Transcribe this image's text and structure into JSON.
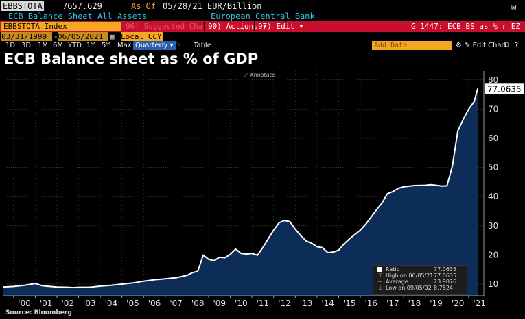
{
  "header": {
    "ticker": "EBBSTOTA",
    "value": "7657.629",
    "asof_label": "As Of",
    "asof_date": "05/28/21",
    "unit": "EUR/Billion",
    "description": "ECB Balance Sheet All Assets",
    "source_name": "European Central Bank"
  },
  "toolbar": {
    "security": "EBBSTOTA Index",
    "suggested": "96) Suggested Charts",
    "actions": "90) Actions",
    "edit": "97) Edit",
    "chart_id": "G 1447: ECB BS as % r EZ GDP"
  },
  "range": {
    "start_date": "03/31/1999",
    "end_date": "06/05/2021",
    "currency": "Local CCY"
  },
  "periods": [
    "1D",
    "3D",
    "1M",
    "6M",
    "YTD",
    "1Y",
    "5Y",
    "Max"
  ],
  "frequency": "Quarterly",
  "table_label": "Table",
  "add_data_placeholder": "Add Data",
  "edit_chart_label": "Edit Chart",
  "annotate_label": "Annotate",
  "source_text": "Source: Bloomberg",
  "legend": {
    "series_label": "Ratio",
    "series_value": "77.0635",
    "high_label": "High on 06/05/21",
    "high_value": "77.0635",
    "avg_label": "Average",
    "avg_value": "23.9076",
    "low_label": "Low on 09/05/02",
    "low_value": "8.7824"
  },
  "colors": {
    "line": "#ffffff",
    "area": "#0c2d57",
    "grid": "#555555",
    "accent": "#f5a623",
    "toolbar": "#c8102e"
  },
  "chart_data": {
    "type": "area",
    "title": "ECB Balance sheet as % of GDP",
    "x_tick_labels": [
      "'00",
      "'01",
      "'02",
      "'03",
      "'04",
      "'05",
      "'06",
      "'07",
      "'08",
      "'09",
      "'10",
      "'11",
      "'12",
      "'13",
      "'14",
      "'15",
      "'16",
      "'17",
      "'18",
      "'19",
      "'20",
      "'21"
    ],
    "y_ticks": [
      10,
      20,
      30,
      40,
      50,
      60,
      70,
      80
    ],
    "ylim": [
      6,
      83
    ],
    "xlim": [
      1999.5,
      2021.7
    ],
    "last_value_label": "77.0635",
    "grid": true,
    "series": [
      {
        "x": [
          1999.5,
          2000.0,
          2000.5,
          2001.0,
          2001.3,
          2001.5,
          2002.0,
          2002.5,
          2002.75,
          2003.0,
          2003.5,
          2004.0,
          2004.5,
          2005.0,
          2005.5,
          2006.0,
          2006.5,
          2007.0,
          2007.5,
          2008.0,
          2008.25,
          2008.5,
          2008.75,
          2009.0,
          2009.25,
          2009.5,
          2009.75,
          2010.0,
          2010.25,
          2010.5,
          2010.75,
          2011.0,
          2011.25,
          2011.5,
          2011.75,
          2012.0,
          2012.25,
          2012.5,
          2012.75,
          2013.0,
          2013.25,
          2013.5,
          2013.75,
          2014.0,
          2014.25,
          2014.5,
          2014.75,
          2015.0,
          2015.25,
          2015.5,
          2015.75,
          2016.0,
          2016.25,
          2016.5,
          2016.75,
          2017.0,
          2017.25,
          2017.5,
          2017.75,
          2018.0,
          2018.5,
          2019.0,
          2019.25,
          2019.5,
          2019.75,
          2020.0,
          2020.25,
          2020.5,
          2020.75,
          2021.0,
          2021.25,
          2021.42
        ],
        "y": [
          9.0,
          9.2,
          9.6,
          10.2,
          9.5,
          9.3,
          9.0,
          8.9,
          8.8,
          8.9,
          8.9,
          9.3,
          9.6,
          10.0,
          10.4,
          11.0,
          11.5,
          11.8,
          12.2,
          13.0,
          13.9,
          14.4,
          19.9,
          18.5,
          18.0,
          19.2,
          19.0,
          20.2,
          22.0,
          20.5,
          20.3,
          20.5,
          19.9,
          22.5,
          25.5,
          28.5,
          31.0,
          31.8,
          31.4,
          28.8,
          26.6,
          24.8,
          24.0,
          22.8,
          22.5,
          20.8,
          21.0,
          21.6,
          23.8,
          25.5,
          27.0,
          28.5,
          30.5,
          33.0,
          35.5,
          37.8,
          41.0,
          41.7,
          42.8,
          43.4,
          43.8,
          43.9,
          44.1,
          43.9,
          43.6,
          43.7,
          50.5,
          62.5,
          66.5,
          70.0,
          72.5,
          77.06
        ]
      }
    ]
  }
}
